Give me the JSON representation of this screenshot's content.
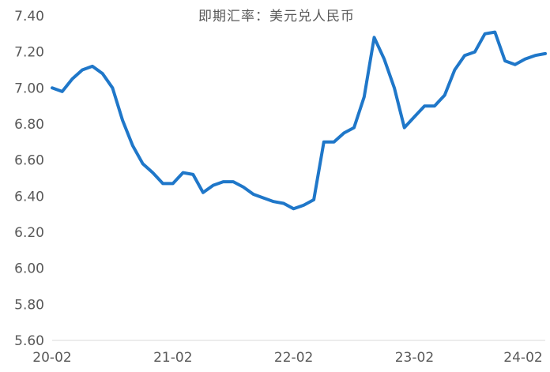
{
  "chart_data": {
    "type": "line",
    "title": "即期汇率：美元兑人民币",
    "xlabel": "",
    "ylabel": "",
    "ylim": [
      5.6,
      7.4
    ],
    "yticks": [
      "5.60",
      "5.80",
      "6.00",
      "6.20",
      "6.40",
      "6.60",
      "6.80",
      "7.00",
      "7.20",
      "7.40"
    ],
    "xticks": [
      "20-02",
      "21-02",
      "22-02",
      "23-02",
      "24-02"
    ],
    "xrange": [
      "2020-02",
      "2024-03"
    ],
    "grid": false,
    "legend": "none",
    "colors": {
      "line": "#1f77c9",
      "axis": "#d9d9d9",
      "text": "#595959"
    },
    "series": [
      {
        "x": [
          "2020-02",
          "2020-03",
          "2020-04",
          "2020-05",
          "2020-06",
          "2020-07",
          "2020-08",
          "2020-09",
          "2020-10",
          "2020-11",
          "2020-12",
          "2021-01",
          "2021-02",
          "2021-03",
          "2021-04",
          "2021-05",
          "2021-06",
          "2021-07",
          "2021-08",
          "2021-09",
          "2021-10",
          "2021-11",
          "2021-12",
          "2022-01",
          "2022-02",
          "2022-03",
          "2022-04",
          "2022-05",
          "2022-06",
          "2022-07",
          "2022-08",
          "2022-09",
          "2022-10",
          "2022-11",
          "2022-12",
          "2023-01",
          "2023-02",
          "2023-03",
          "2023-04",
          "2023-05",
          "2023-06",
          "2023-07",
          "2023-08",
          "2023-09",
          "2023-10",
          "2023-11",
          "2023-12",
          "2024-01",
          "2024-02",
          "2024-03"
        ],
        "values": [
          7.0,
          6.98,
          7.05,
          7.1,
          7.12,
          7.08,
          7.0,
          6.82,
          6.68,
          6.58,
          6.53,
          6.47,
          6.47,
          6.53,
          6.52,
          6.42,
          6.46,
          6.48,
          6.48,
          6.45,
          6.41,
          6.39,
          6.37,
          6.36,
          6.33,
          6.35,
          6.38,
          6.7,
          6.7,
          6.75,
          6.78,
          6.95,
          7.28,
          7.16,
          7.0,
          6.78,
          6.84,
          6.9,
          6.9,
          6.96,
          7.1,
          7.18,
          7.2,
          7.3,
          7.31,
          7.15,
          7.13,
          7.16,
          7.18,
          7.19
        ]
      }
    ]
  }
}
